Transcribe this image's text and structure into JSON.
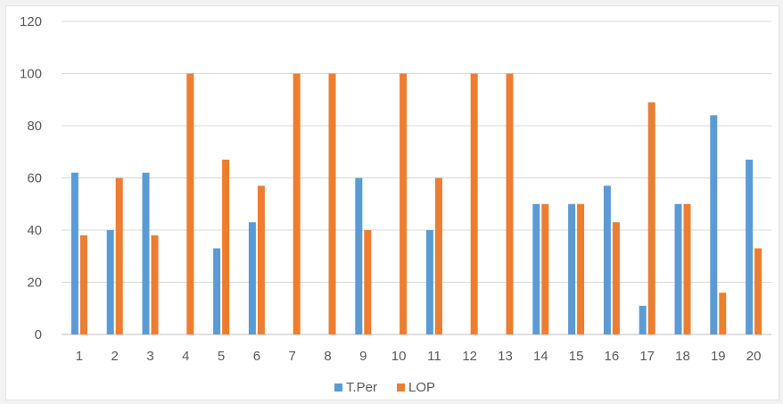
{
  "chart_data": {
    "type": "bar",
    "title": "",
    "xlabel": "",
    "ylabel": "",
    "ylim": [
      0,
      120
    ],
    "yticks": [
      0,
      20,
      40,
      60,
      80,
      100,
      120
    ],
    "grid": true,
    "legend_position": "bottom",
    "categories": [
      "1",
      "2",
      "3",
      "4",
      "5",
      "6",
      "7",
      "8",
      "9",
      "10",
      "11",
      "12",
      "13",
      "14",
      "15",
      "16",
      "17",
      "18",
      "19",
      "20"
    ],
    "series": [
      {
        "name": "T.Per",
        "color": "#5b9bd5",
        "values": [
          62,
          40,
          62,
          0,
          33,
          43,
          0,
          0,
          60,
          0,
          40,
          0,
          0,
          50,
          50,
          57,
          11,
          50,
          84,
          67
        ]
      },
      {
        "name": "LOP",
        "color": "#ed7d31",
        "values": [
          38,
          60,
          38,
          100,
          67,
          57,
          100,
          100,
          40,
          100,
          60,
          100,
          100,
          50,
          50,
          43,
          89,
          50,
          16,
          33
        ]
      }
    ]
  }
}
